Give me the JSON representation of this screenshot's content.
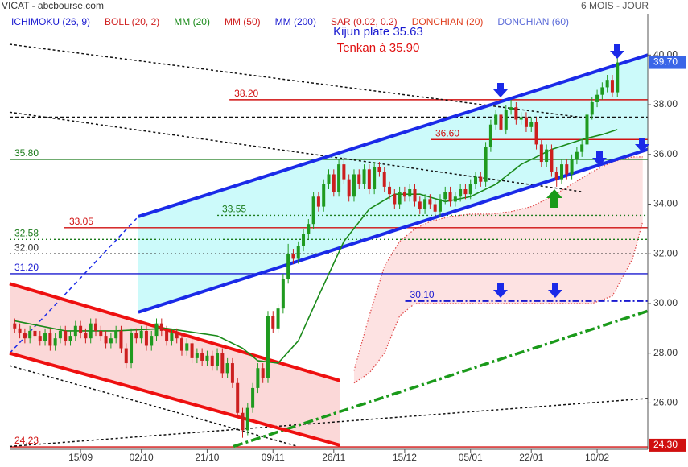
{
  "chart_data": {
    "type": "candlestick",
    "title": "VICAT - abcbourse.com",
    "subtitle": "6 MOIS - JOUR",
    "legend": [
      {
        "label": "ICHIMOKU (26, 9)",
        "color": "#1a1ad0"
      },
      {
        "label": "BOLL (20, 2)",
        "color": "#d02020"
      },
      {
        "label": "MM (20)",
        "color": "#1a8a1a"
      },
      {
        "label": "MM (50)",
        "color": "#d02020"
      },
      {
        "label": "MM (200)",
        "color": "#1a1ad0"
      },
      {
        "label": "SAR (0.02, 0.2)",
        "color": "#d02020"
      },
      {
        "label": "DONCHIAN (20)",
        "color": "#e04020"
      },
      {
        "label": "DONCHIAN (60)",
        "color": "#5a6ad8"
      }
    ],
    "annotations": [
      {
        "text": "Kijun plate 35.63",
        "color": "#1a1ad0"
      },
      {
        "text": "Tenkan à 35.90",
        "color": "#e01010"
      }
    ],
    "ylim": [
      24.2,
      41.63
    ],
    "yticks": [
      {
        "value": 26,
        "label": "26.00"
      },
      {
        "value": 28,
        "label": "28.00"
      },
      {
        "value": 30,
        "label": "30.00"
      },
      {
        "value": 32,
        "label": "32.00"
      },
      {
        "value": 34,
        "label": "34.00"
      },
      {
        "value": 36,
        "label": "36.00"
      },
      {
        "value": 38,
        "label": "38.00"
      },
      {
        "value": 40,
        "label": "40.00"
      }
    ],
    "xlim": [
      -1,
      125
    ],
    "xticks": [
      {
        "value": 13,
        "label": "15/09"
      },
      {
        "value": 25,
        "label": "02/10"
      },
      {
        "value": 38,
        "label": "21/10"
      },
      {
        "value": 51,
        "label": "09/11"
      },
      {
        "value": 63,
        "label": "26/11"
      },
      {
        "value": 77,
        "label": "15/12"
      },
      {
        "value": 90,
        "label": "05/01"
      },
      {
        "value": 102,
        "label": "22/01"
      },
      {
        "value": 115,
        "label": "10/02"
      }
    ],
    "up_color": "#1f9a1f",
    "down_color": "#cc1f1f",
    "ohlc": {
      "open": [
        29.2,
        29.0,
        28.8,
        28.6,
        28.9,
        28.7,
        28.5,
        28.8,
        28.3,
        28.6,
        28.9,
        28.5,
        28.7,
        29.1,
        28.8,
        28.6,
        29.2,
        28.9,
        28.7,
        28.4,
        28.6,
        28.9,
        28.2,
        27.6,
        28.8,
        28.6,
        28.9,
        28.3,
        28.7,
        29.2,
        28.9,
        28.5,
        28.8,
        28.6,
        28.1,
        28.4,
        27.8,
        28.0,
        27.7,
        27.9,
        27.5,
        28.0,
        27.2,
        27.6,
        26.8,
        25.6,
        24.9,
        25.8,
        26.6,
        27.4,
        27.0,
        29.5,
        29.0,
        29.8,
        31.0,
        32.0,
        31.8,
        32.3,
        32.8,
        33.2,
        34.3,
        33.9,
        34.8,
        35.2,
        34.5,
        35.6,
        35.0,
        34.3,
        35.2,
        34.8,
        35.4,
        34.6,
        35.5,
        35.3,
        34.7,
        34.4,
        34.0,
        34.5,
        34.3,
        34.6,
        34.1,
        33.8,
        34.2,
        34.0,
        33.7,
        34.2,
        34.5,
        34.1,
        34.3,
        34.6,
        34.4,
        34.8,
        35.1,
        34.9,
        36.3,
        37.2,
        37.6,
        37.0,
        37.8,
        37.9,
        37.4,
        37.5,
        37.1,
        37.3,
        36.4,
        35.7,
        36.2,
        35.3,
        35.0,
        35.6,
        35.2,
        35.8,
        36.1,
        36.4,
        37.6,
        38.1,
        38.4,
        38.7,
        39.0,
        38.5
      ],
      "high": [
        29.4,
        29.2,
        29.0,
        29.1,
        29.1,
        28.9,
        29.0,
        29.0,
        28.8,
        29.1,
        29.1,
        28.9,
        29.3,
        29.3,
        29.0,
        29.4,
        29.4,
        29.1,
        28.9,
        28.8,
        29.1,
        29.1,
        28.4,
        29.0,
        29.0,
        29.1,
        29.1,
        28.9,
        29.4,
        29.4,
        29.1,
        29.0,
        29.0,
        28.8,
        28.6,
        28.6,
        28.2,
        28.2,
        28.1,
        28.1,
        28.2,
        28.2,
        27.8,
        27.8,
        27.0,
        25.8,
        26.0,
        26.8,
        27.6,
        27.6,
        29.7,
        29.7,
        30.0,
        31.2,
        32.4,
        32.2,
        32.5,
        33.0,
        33.4,
        34.5,
        34.5,
        35.0,
        35.4,
        35.4,
        35.8,
        35.9,
        35.2,
        35.4,
        35.4,
        35.6,
        35.6,
        35.7,
        35.7,
        35.5,
        34.9,
        34.6,
        34.7,
        34.7,
        34.8,
        34.8,
        34.3,
        34.4,
        34.4,
        34.2,
        34.4,
        34.7,
        34.7,
        34.5,
        34.8,
        34.8,
        35.0,
        35.3,
        35.3,
        36.5,
        37.4,
        37.8,
        37.8,
        38.0,
        38.2,
        38.1,
        37.7,
        37.7,
        37.5,
        37.5,
        36.6,
        36.4,
        36.4,
        35.5,
        35.8,
        35.8,
        36.0,
        36.3,
        36.6,
        37.8,
        38.3,
        38.6,
        38.9,
        39.2,
        39.2,
        40.0
      ],
      "low": [
        28.8,
        28.6,
        28.4,
        28.4,
        28.5,
        28.3,
        28.3,
        28.1,
        28.1,
        28.4,
        28.3,
        28.3,
        28.5,
        28.6,
        28.4,
        28.4,
        28.7,
        28.5,
        28.2,
        28.2,
        28.4,
        28.0,
        27.4,
        27.4,
        28.4,
        28.4,
        28.1,
        28.1,
        28.5,
        28.7,
        28.3,
        28.3,
        28.4,
        27.9,
        27.9,
        27.6,
        27.6,
        27.5,
        27.5,
        27.3,
        27.3,
        27.0,
        27.0,
        26.6,
        25.4,
        24.6,
        24.7,
        25.6,
        26.4,
        26.8,
        26.8,
        28.8,
        28.8,
        29.6,
        30.8,
        31.6,
        31.6,
        32.1,
        32.6,
        33.0,
        33.7,
        33.7,
        34.6,
        34.3,
        34.3,
        34.8,
        34.1,
        34.1,
        34.6,
        34.6,
        34.4,
        34.4,
        35.1,
        34.5,
        34.2,
        33.8,
        33.8,
        34.1,
        34.1,
        33.9,
        33.6,
        33.6,
        33.8,
        33.5,
        33.5,
        34.0,
        33.9,
        33.9,
        34.1,
        34.2,
        34.2,
        34.6,
        34.7,
        34.7,
        36.1,
        37.0,
        36.8,
        36.8,
        37.6,
        37.2,
        37.2,
        36.9,
        36.9,
        36.2,
        35.5,
        35.5,
        35.1,
        34.7,
        34.8,
        35.0,
        35.0,
        35.6,
        35.9,
        36.2,
        37.4,
        37.9,
        38.2,
        38.5,
        38.3,
        38.3
      ],
      "close": [
        29.0,
        28.8,
        28.6,
        28.9,
        28.7,
        28.5,
        28.8,
        28.3,
        28.6,
        28.9,
        28.5,
        28.7,
        29.1,
        28.8,
        28.6,
        29.2,
        28.9,
        28.7,
        28.4,
        28.6,
        28.9,
        28.2,
        27.6,
        28.8,
        28.6,
        28.9,
        28.3,
        28.7,
        29.2,
        28.9,
        28.5,
        28.8,
        28.6,
        28.1,
        28.4,
        27.8,
        28.0,
        27.7,
        27.9,
        27.5,
        28.0,
        27.2,
        27.6,
        26.8,
        25.6,
        24.9,
        25.8,
        26.6,
        27.4,
        27.0,
        29.5,
        29.0,
        29.8,
        31.0,
        32.0,
        31.8,
        32.3,
        32.8,
        33.2,
        34.3,
        33.9,
        34.8,
        35.2,
        34.5,
        35.6,
        35.0,
        34.3,
        35.2,
        34.8,
        35.4,
        34.6,
        35.5,
        35.3,
        34.7,
        34.4,
        34.0,
        34.5,
        34.3,
        34.6,
        34.1,
        33.8,
        34.2,
        34.0,
        33.7,
        34.2,
        34.5,
        34.1,
        34.3,
        34.6,
        34.4,
        34.8,
        35.1,
        34.9,
        36.3,
        37.2,
        37.6,
        37.0,
        37.8,
        37.9,
        37.4,
        37.5,
        37.1,
        37.3,
        36.4,
        35.7,
        36.2,
        35.3,
        35.0,
        35.6,
        35.2,
        35.8,
        36.1,
        36.4,
        37.6,
        38.1,
        38.4,
        38.7,
        39.0,
        38.5,
        39.7
      ]
    },
    "ma": {
      "color": "#1a8a1a",
      "x": [
        0,
        10,
        20,
        30,
        40,
        45,
        48,
        52,
        56,
        60,
        65,
        70,
        75,
        80,
        85,
        90,
        95,
        100,
        106,
        112,
        116,
        119
      ],
      "values": [
        29.3,
        28.9,
        28.9,
        29.0,
        28.7,
        28.2,
        27.7,
        27.6,
        28.5,
        30.3,
        32.5,
        33.8,
        34.4,
        34.4,
        34.1,
        34.3,
        34.8,
        35.6,
        36.2,
        36.6,
        36.8,
        37.0
      ]
    },
    "cloud": {
      "color": "#e04848",
      "fill": "#fde2e2",
      "x": [
        67,
        70,
        73,
        76,
        79,
        82,
        86,
        90,
        94,
        98,
        102,
        106,
        110,
        114,
        118,
        122,
        124
      ],
      "upper": [
        27.3,
        29.5,
        31.5,
        32.5,
        33.0,
        33.3,
        33.5,
        33.6,
        33.6,
        33.7,
        33.9,
        34.3,
        34.8,
        35.3,
        35.7,
        35.9,
        35.9
      ],
      "lower": [
        26.8,
        27.2,
        28.0,
        29.5,
        30.0,
        30.0,
        30.0,
        30.0,
        30.0,
        30.0,
        30.0,
        30.0,
        30.0,
        30.0,
        30.3,
        31.8,
        33.3
      ]
    },
    "channels": [
      {
        "x": [
          24.4,
          125
        ],
        "upper": [
          33.5,
          40.0
        ],
        "lower": [
          29.65,
          36.2
        ],
        "color": "#1a2ae8",
        "fill": "#ccfafa"
      },
      {
        "x": [
          -1,
          64.2
        ],
        "upper": [
          30.8,
          26.9
        ],
        "lower": [
          28.0,
          24.3
        ],
        "color": "#ee1010",
        "fill": "#fbd8d8"
      }
    ],
    "trendlines": [
      {
        "x": [
          -1,
          24.4
        ],
        "y": [
          28.0,
          33.5
        ],
        "color": "#1a2ae8",
        "width": 1.5,
        "dash": "5 4"
      },
      {
        "x": [
          -1,
          111.6
        ],
        "y": [
          40.43,
          37.5
        ],
        "color": "#111111",
        "width": 1.5,
        "dash": "3 3"
      },
      {
        "x": [
          -1,
          112
        ],
        "y": [
          37.7,
          34.5
        ],
        "color": "#111111",
        "width": 1.5,
        "dash": "3 3"
      },
      {
        "x": [
          -1,
          55.9
        ],
        "y": [
          27.5,
          24.25
        ],
        "color": "#111111",
        "width": 1.5,
        "dash": "3 3"
      },
      {
        "x": [
          -1,
          125
        ],
        "y": [
          24.25,
          26.18
        ],
        "color": "#111111",
        "width": 1.5,
        "dash": "3 3"
      },
      {
        "x": [
          -1,
          125
        ],
        "y": [
          37.5,
          37.5
        ],
        "color": "#111111",
        "width": 1.5,
        "dash": "4 3"
      },
      {
        "x": [
          43.2,
          125
        ],
        "y": [
          24.25,
          29.7
        ],
        "color": "#1a9a1a",
        "width": 3.5,
        "dash": "12 4 3 4"
      }
    ],
    "levels": [
      {
        "value": 38.2,
        "label": "38.20",
        "from": 42.4,
        "color": "#d01010",
        "dash": ""
      },
      {
        "value": 36.6,
        "label": "36.60",
        "from": 82.1,
        "color": "#d01010",
        "dash": ""
      },
      {
        "value": 35.8,
        "label": "35.80",
        "from": -1,
        "color": "#1a7a1a",
        "dash": ""
      },
      {
        "value": 33.55,
        "label": "33.55",
        "from": 40,
        "color": "#1a7a1a",
        "dash": "2 3"
      },
      {
        "value": 33.05,
        "label": "33.05",
        "from": 9.8,
        "color": "#d01010",
        "dash": ""
      },
      {
        "value": 32.58,
        "label": "32.58",
        "from": -1,
        "color": "#1a7a1a",
        "dash": "2 3"
      },
      {
        "value": 32,
        "label": "32.00",
        "from": -1,
        "color": "#333333",
        "dash": "2 3"
      },
      {
        "value": 31.2,
        "label": "31.20",
        "from": -1,
        "color": "#1a1ad0",
        "dash": ""
      },
      {
        "value": 30.1,
        "label": "30.10",
        "from": 77.1,
        "color": "#1a1ad0",
        "dash": "8 3 2 3"
      },
      {
        "value": 24.23,
        "label": "24.23",
        "from": -1,
        "color": "#d01010",
        "dash": ""
      }
    ],
    "price_tags": [
      {
        "value": 39.7,
        "label": "39.70",
        "color": "#3a66e8"
      },
      {
        "value": 24.3,
        "label": "24.30",
        "color": "#d01010"
      }
    ]
  }
}
